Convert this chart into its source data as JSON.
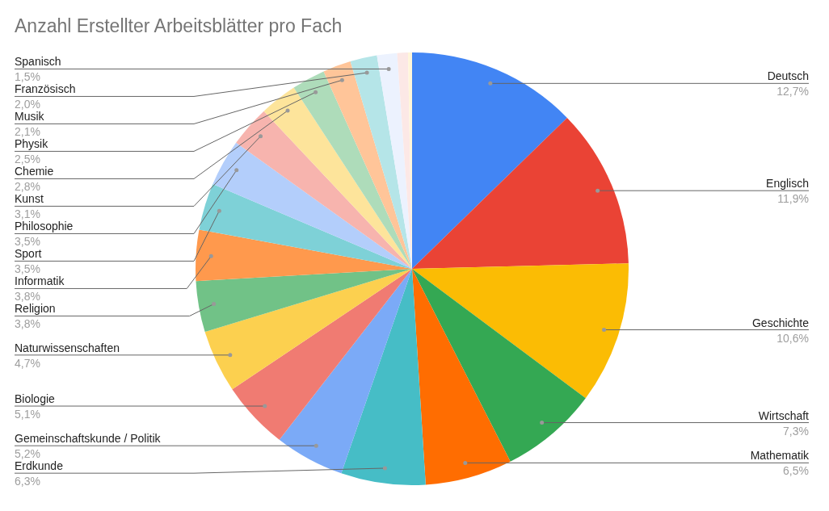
{
  "chart_data": {
    "type": "pie",
    "title": "Anzahl Erstellter Arbeitsblätter pro Fach",
    "categories": [
      "Deutsch",
      "Englisch",
      "Geschichte",
      "Wirtschaft",
      "Mathematik",
      "Erdkunde",
      "Gemeinschaftskunde / Politik",
      "Biologie",
      "Naturwissenschaften",
      "Religion",
      "Informatik",
      "Sport",
      "Philosophie",
      "Kunst",
      "Chemie",
      "Physik",
      "Musik",
      "Französisch",
      "Spanisch",
      null,
      null
    ],
    "values": [
      12.7,
      11.9,
      10.6,
      7.3,
      6.5,
      6.3,
      5.2,
      5.1,
      4.7,
      3.8,
      3.8,
      3.5,
      3.5,
      3.1,
      2.8,
      2.5,
      2.1,
      2.0,
      1.5,
      0.8,
      0.3
    ],
    "value_labels": [
      "12,7%",
      "11,9%",
      "10,6%",
      "7,3%",
      "6,5%",
      "6,3%",
      "5,2%",
      "5,1%",
      "4,7%",
      "3,8%",
      "3,8%",
      "3,5%",
      "3,5%",
      "3,1%",
      "2,8%",
      "2,5%",
      "2,1%",
      "2,0%",
      "1,5%",
      null,
      null
    ],
    "colors": [
      "#4285f4",
      "#ea4335",
      "#fbbc04",
      "#34a853",
      "#ff6d01",
      "#46bdc6",
      "#7baaf7",
      "#f07b72",
      "#fcd04f",
      "#71c287",
      "#ff994d",
      "#7ed1d7",
      "#b3cefb",
      "#f7b4ae",
      "#fde49b",
      "#aedcba",
      "#ffc599",
      "#b5e5e8",
      "#ecf2fe",
      "#fce8e6",
      "#fff6d9"
    ]
  }
}
